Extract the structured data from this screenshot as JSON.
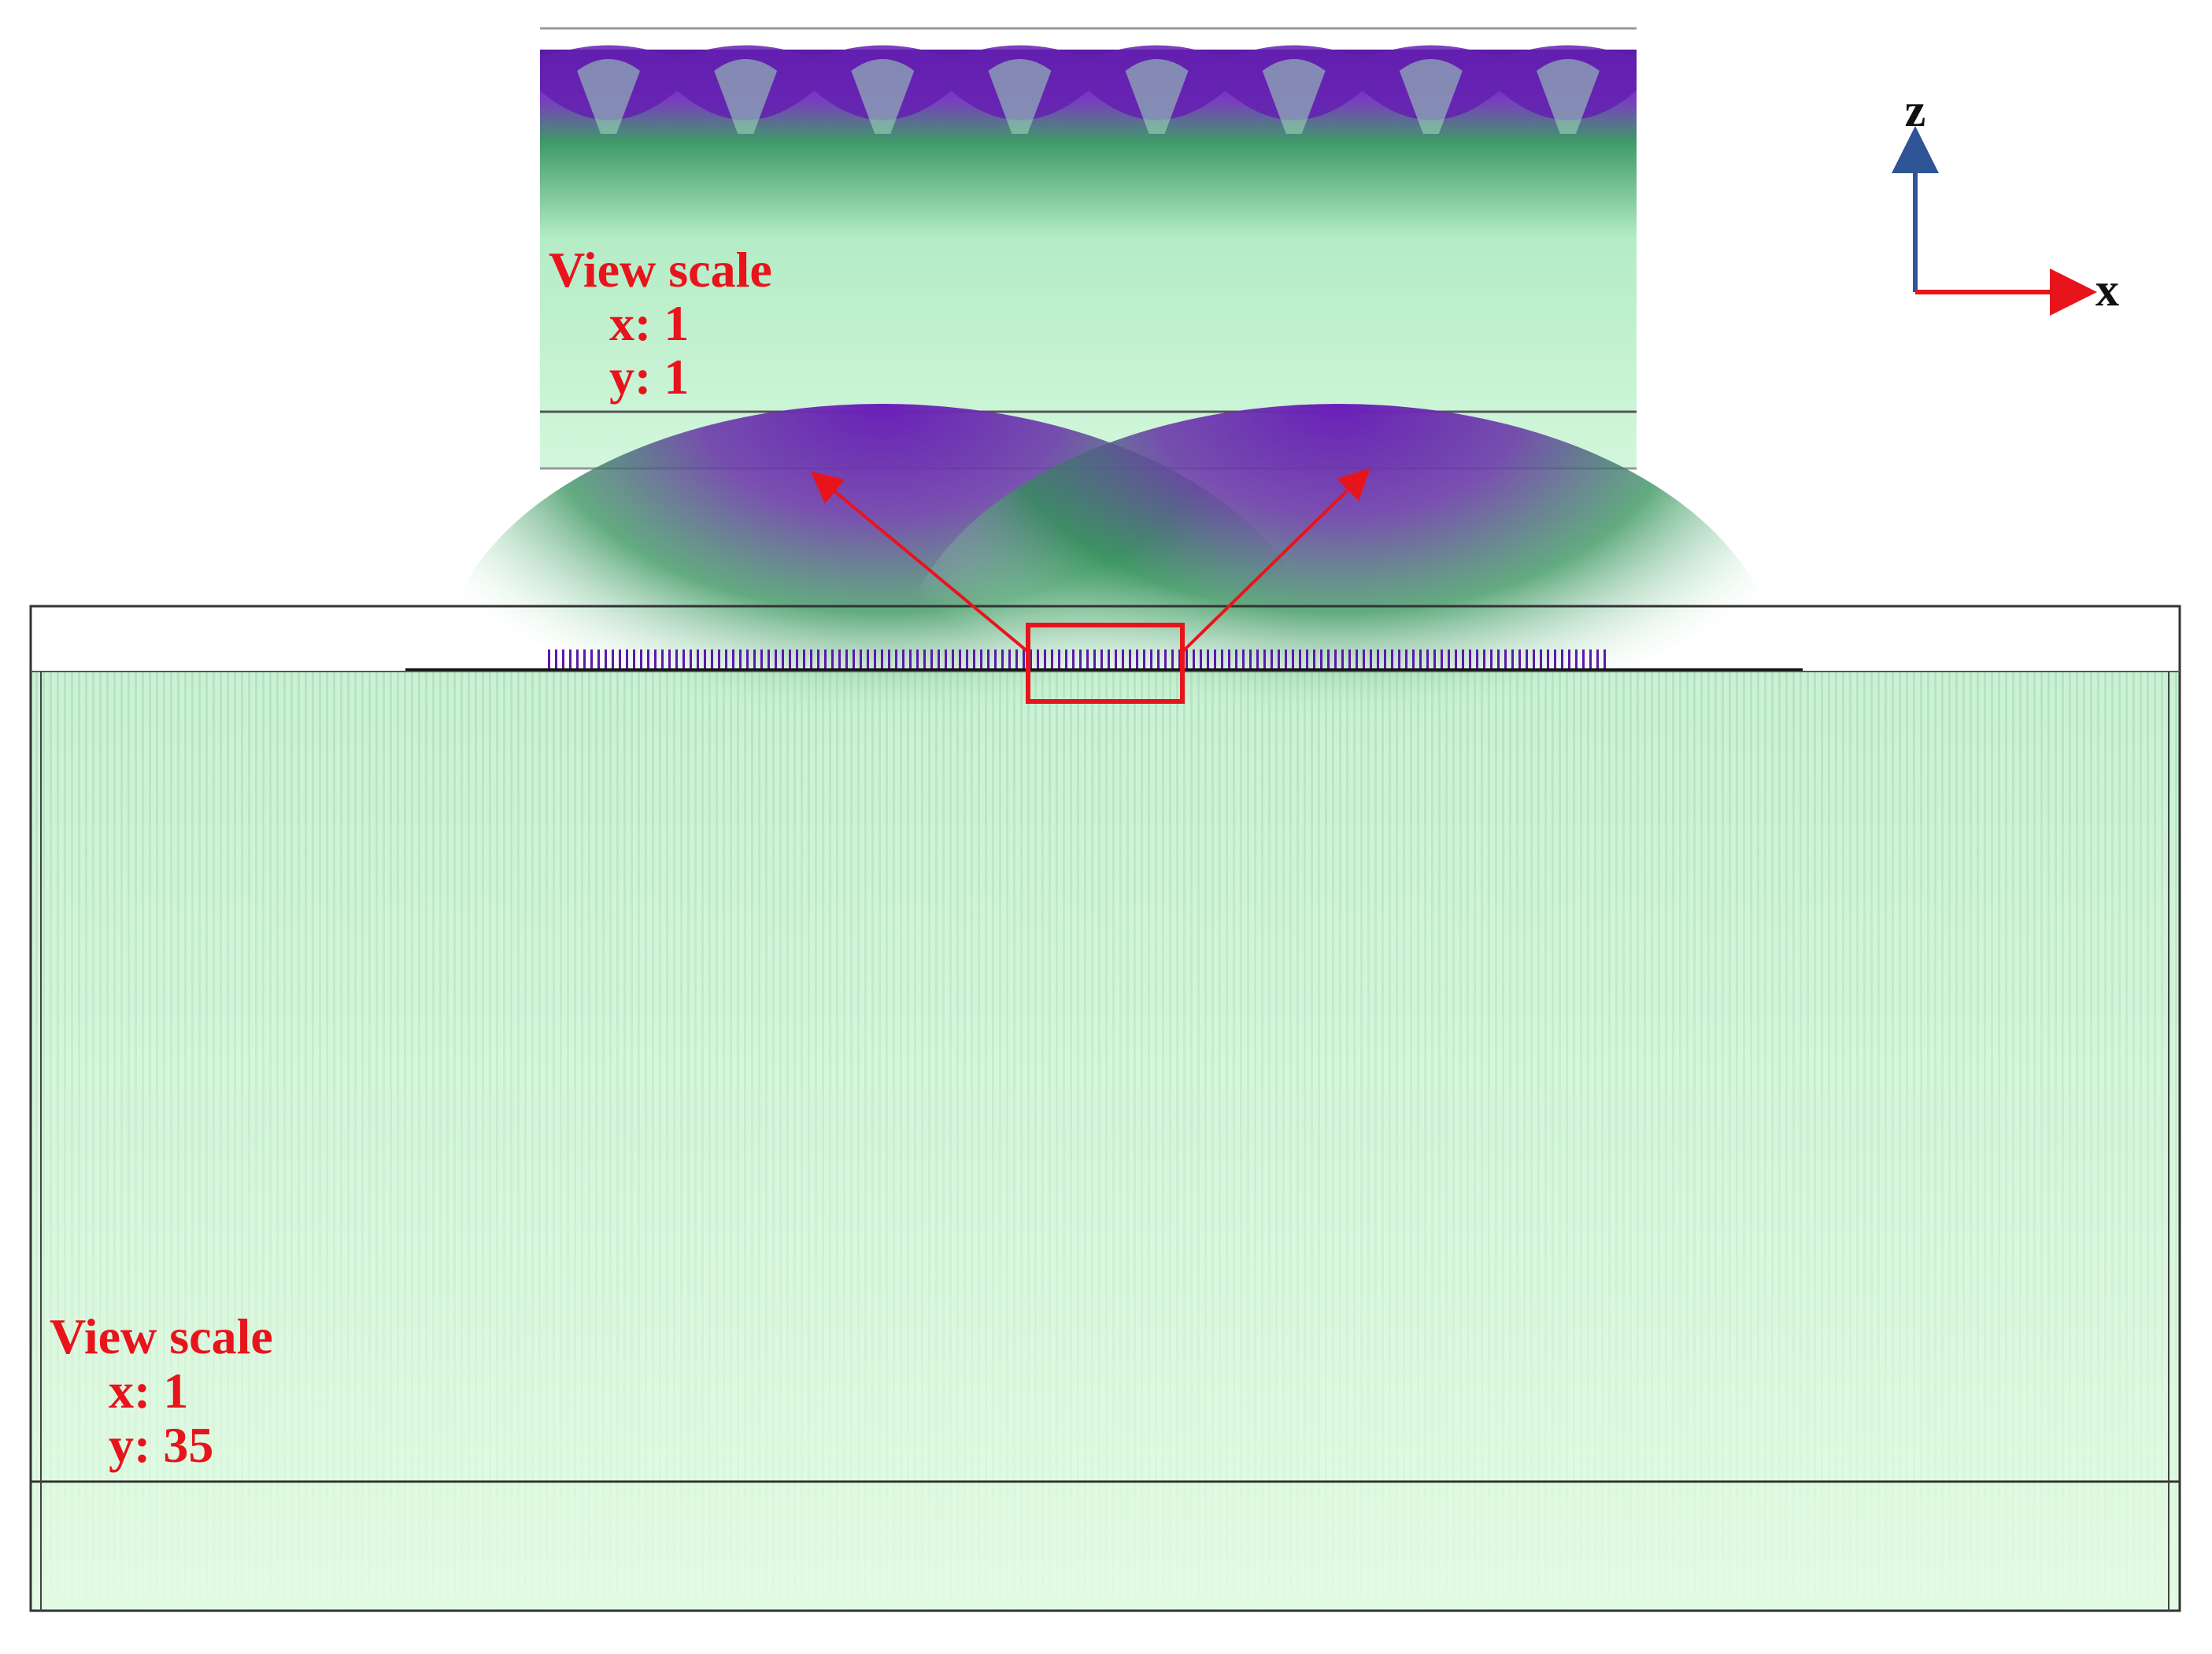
{
  "inset": {
    "title": "View scale",
    "x_scale": "x: 1",
    "y_scale": "y: 1"
  },
  "main": {
    "title": "View scale",
    "x_scale": "x: 1",
    "y_scale": "y: 35"
  },
  "axes": {
    "z": "z",
    "x": "x"
  }
}
